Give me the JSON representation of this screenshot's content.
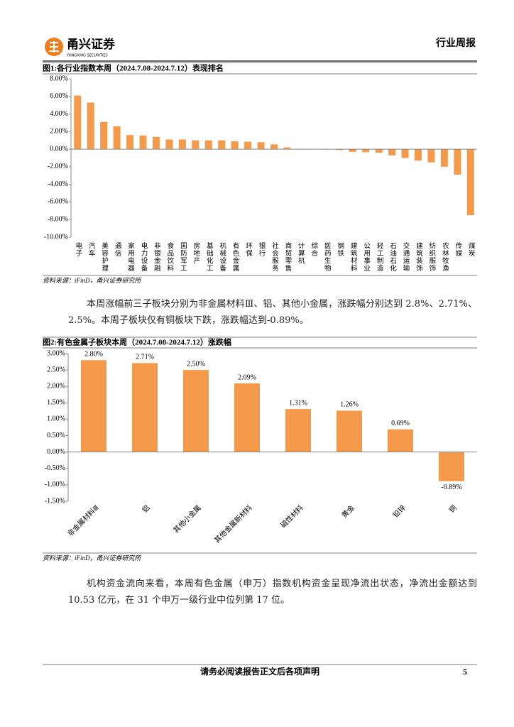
{
  "header": {
    "logo_name": "甬兴证券",
    "logo_subtitle": "YONGXING SECURITIES",
    "report_type": "行业周报"
  },
  "chart_data": [
    {
      "type": "bar",
      "title": "图1:各行业指数本周（2024.7.08-2024.7.12）表现排名",
      "categories": [
        "电子",
        "汽车",
        "美容护理",
        "通信",
        "家用电器",
        "电力设备",
        "非银金融",
        "食品饮料",
        "国防军工",
        "房地产",
        "基础化工",
        "机械设备",
        "有色金属",
        "环保",
        "银行",
        "社会服务",
        "商贸零售",
        "计算机",
        "综合",
        "医药生物",
        "钢铁",
        "建筑材料",
        "公用事业",
        "轻工制造",
        "石油石化",
        "交通运输",
        "建筑装饰",
        "纺织服饰",
        "农林牧渔",
        "传媒",
        "煤炭"
      ],
      "values": [
        6.1,
        5.3,
        3.1,
        2.6,
        1.6,
        1.55,
        1.4,
        1.1,
        1.1,
        1.0,
        1.0,
        1.0,
        0.9,
        0.85,
        0.8,
        0.55,
        0.2,
        0.05,
        0.02,
        -0.05,
        -0.1,
        -0.3,
        -0.35,
        -0.4,
        -0.7,
        -1.0,
        -1.3,
        -1.5,
        -2.0,
        -2.9,
        -7.5
      ],
      "color": "#f59a4a",
      "ylim": [
        -10,
        8
      ],
      "yticks": [
        {
          "value": -10,
          "label": "-10.00%"
        },
        {
          "value": -8,
          "label": "-8.00%"
        },
        {
          "value": -6,
          "label": "-6.00%"
        },
        {
          "value": -4,
          "label": "-4.00%"
        },
        {
          "value": -2,
          "label": "-2.00%"
        },
        {
          "value": 0,
          "label": "0.00%"
        },
        {
          "value": 2,
          "label": "2.00%"
        },
        {
          "value": 4,
          "label": "4.00%"
        },
        {
          "value": 6,
          "label": "6.00%"
        },
        {
          "value": 8,
          "label": "8.00%"
        }
      ],
      "source": "资料来源：iFinD，甬兴证券研究所"
    },
    {
      "type": "bar",
      "title": "图2:有色金属子板块本周（2024.7.08-2024.7.12）涨跌幅",
      "categories": [
        "非金属材料Ⅲ",
        "铝",
        "其他小金属",
        "其他金属新材料",
        "磁性材料",
        "黄金",
        "铅锌",
        "铜"
      ],
      "values": [
        2.8,
        2.71,
        2.5,
        2.09,
        1.31,
        1.26,
        0.69,
        -0.89
      ],
      "value_labels": [
        "2.80%",
        "2.71%",
        "2.50%",
        "2.09%",
        "1.31%",
        "1.26%",
        "0.69%",
        "-0.89%"
      ],
      "color": "#f59a4a",
      "ylim": [
        -1.5,
        3
      ],
      "yticks": [
        {
          "value": -1.5,
          "label": "-1.50%"
        },
        {
          "value": -1,
          "label": "-1.00%"
        },
        {
          "value": -0.5,
          "label": "-0.50%"
        },
        {
          "value": 0,
          "label": "0.00%"
        },
        {
          "value": 0.5,
          "label": "0.50%"
        },
        {
          "value": 1,
          "label": "1.00%"
        },
        {
          "value": 1.5,
          "label": "1.50%"
        },
        {
          "value": 2,
          "label": "2.00%"
        },
        {
          "value": 2.5,
          "label": "2.50%"
        },
        {
          "value": 3,
          "label": "3.00%"
        }
      ],
      "source": "资料来源：iFinD，甬兴证券研究所"
    }
  ],
  "paragraphs": [
    "本周涨幅前三子板块分别为非金属材料Ⅲ、铝、其他小金属，涨跌幅分别达到 2.8%、2.71%、2.5%。本周子板块仅有铜板块下跌，涨跌幅达到-0.89%。",
    "机构资金流向来看，本周有色金属（申万）指数机构资金呈现净流出状态，净流出金额达到 10.53 亿元，在 31 个申万一级行业中位列第 17 位。"
  ],
  "footer": {
    "disclaimer": "请务必阅读报告正文后各项声明",
    "page": "5"
  }
}
